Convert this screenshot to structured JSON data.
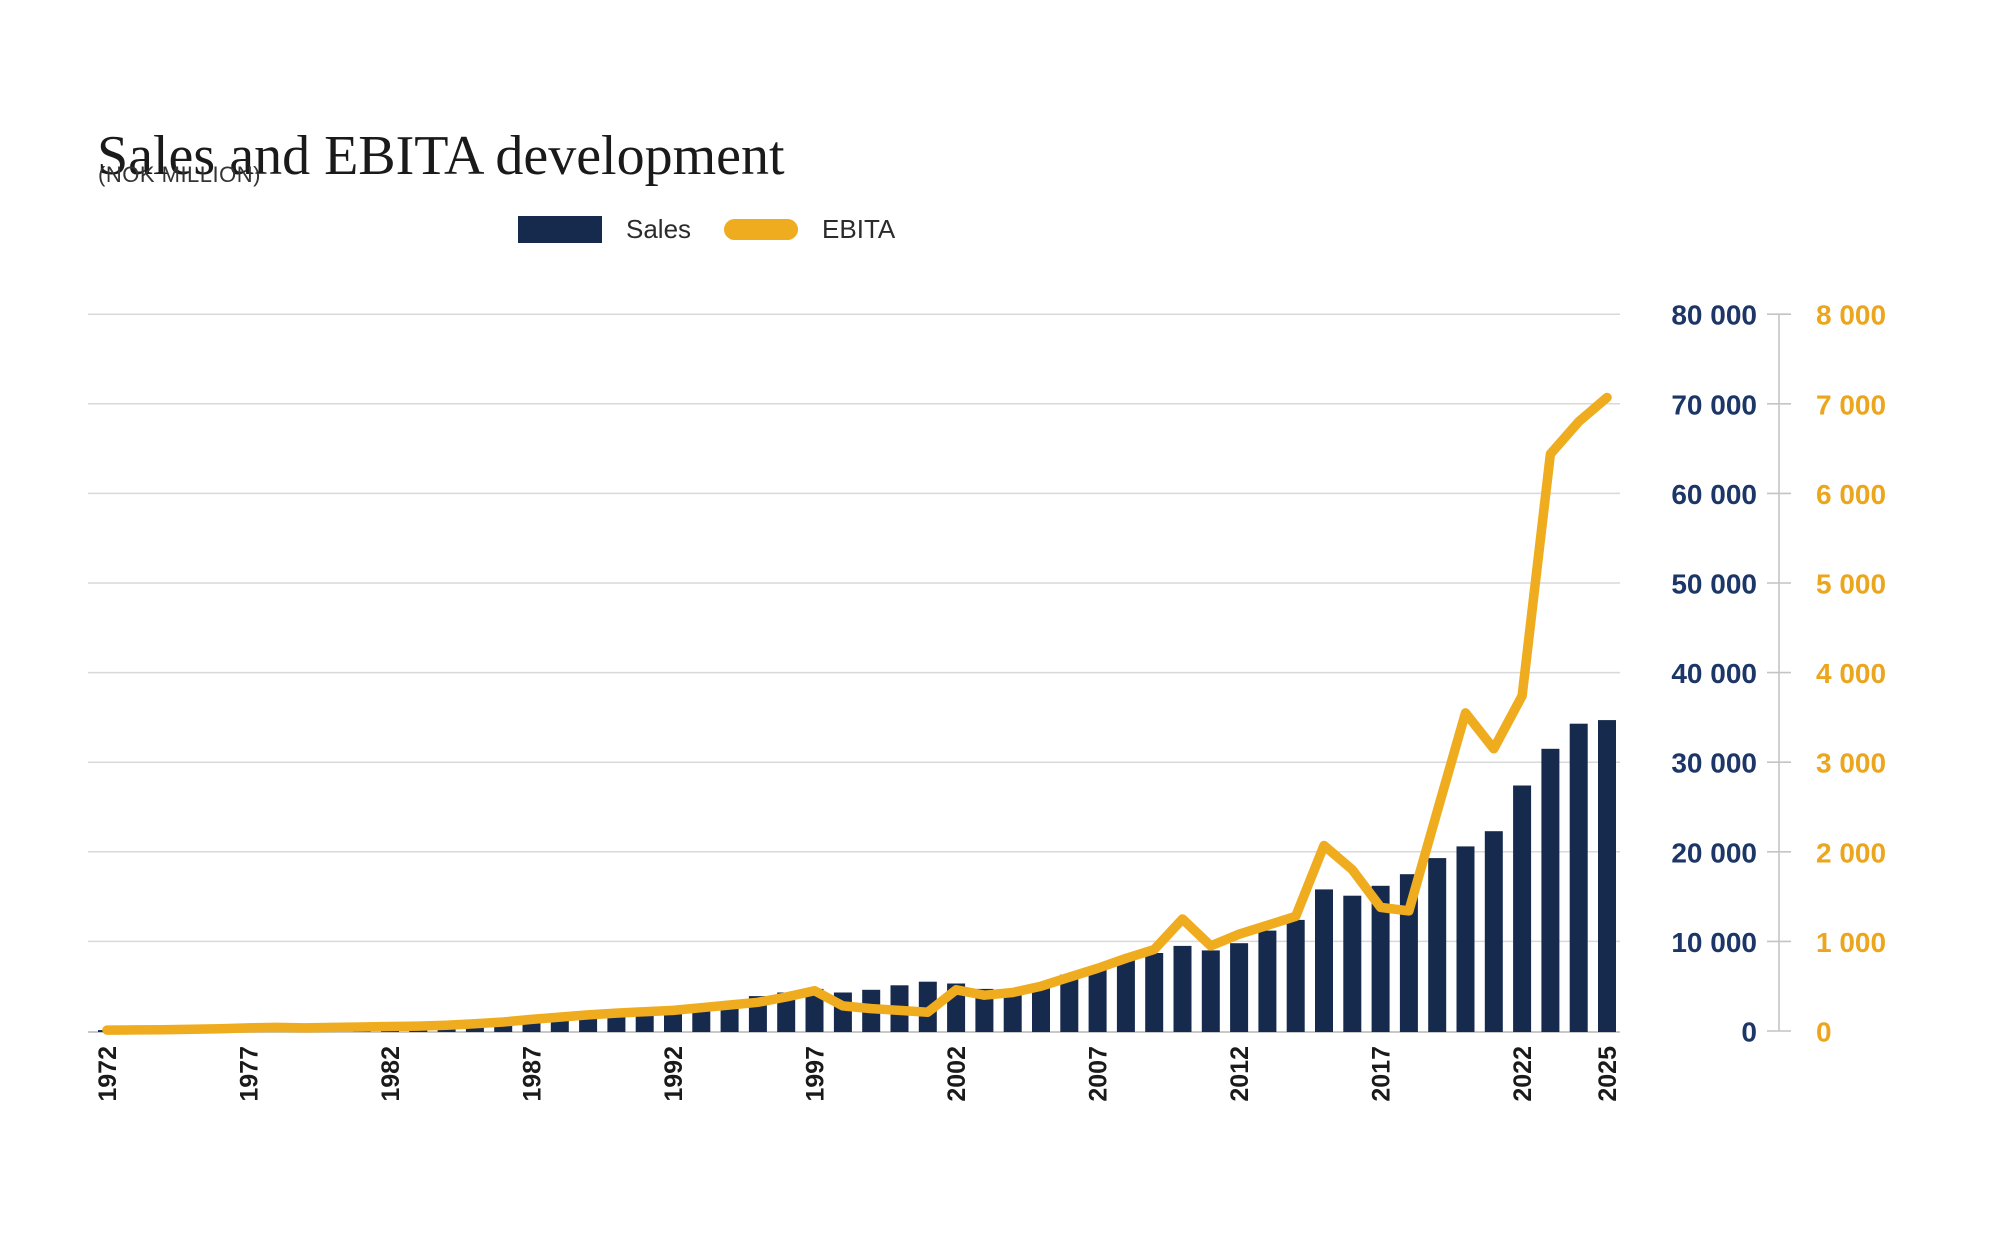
{
  "title": "Sales and EBITA development",
  "subtitle": "(NOK MILLION)",
  "legend": [
    {
      "label": "Sales",
      "swatch": "bar-swatch"
    },
    {
      "label": "EBITA",
      "swatch": "line-swatch"
    }
  ],
  "colors": {
    "bar": "#152A4D",
    "line": "#EFAC1E",
    "left_axis_text": "#1C3667",
    "right_axis_text": "#EBA61E",
    "grid": "#D9D9D9",
    "baseline": "#C9C9C9",
    "axis_line": "#C4C4C4",
    "year_text": "#1A1A1A"
  },
  "chart_data": {
    "type": "bar+line",
    "title": "Sales and EBITA development",
    "subtitle": "(NOK MILLION)",
    "grid": true,
    "legend_position": "top",
    "x": [
      1972,
      1973,
      1974,
      1975,
      1976,
      1977,
      1978,
      1979,
      1980,
      1981,
      1982,
      1983,
      1984,
      1985,
      1986,
      1987,
      1988,
      1989,
      1990,
      1991,
      1992,
      1993,
      1994,
      1995,
      1996,
      1997,
      1998,
      1999,
      2000,
      2001,
      2002,
      2003,
      2004,
      2005,
      2006,
      2007,
      2008,
      2009,
      2010,
      2011,
      2012,
      2013,
      2014,
      2015,
      2016,
      2017,
      2018,
      2019,
      2020,
      2021,
      2022,
      2023,
      2024,
      2025
    ],
    "x_tick_years": [
      1972,
      1977,
      1982,
      1987,
      1992,
      1997,
      2002,
      2007,
      2012,
      2017,
      2022,
      2025
    ],
    "series": [
      {
        "name": "Sales",
        "type": "bar",
        "axis": "left",
        "values": [
          100,
          150,
          200,
          300,
          450,
          600,
          700,
          750,
          800,
          850,
          800,
          850,
          900,
          950,
          1000,
          1200,
          1400,
          1700,
          1900,
          2100,
          2400,
          2800,
          3300,
          3900,
          4300,
          4700,
          4300,
          4600,
          5100,
          5500,
          5300,
          4700,
          4700,
          5300,
          6300,
          7200,
          8000,
          8700,
          9500,
          9000,
          9800,
          11200,
          12400,
          15800,
          15100,
          16200,
          17500,
          19300,
          20600,
          22300,
          27400,
          31500,
          34300,
          34700
        ]
      },
      {
        "name": "EBITA",
        "type": "line",
        "axis": "right",
        "values": [
          10,
          12,
          15,
          20,
          25,
          35,
          40,
          35,
          40,
          45,
          50,
          55,
          65,
          80,
          100,
          130,
          155,
          180,
          200,
          215,
          230,
          260,
          290,
          320,
          380,
          450,
          280,
          250,
          230,
          210,
          460,
          400,
          430,
          500,
          600,
          700,
          810,
          910,
          1250,
          950,
          1080,
          1180,
          1280,
          2070,
          1800,
          1380,
          1340,
          2450,
          3550,
          3150,
          3740,
          6440,
          6800,
          7070
        ]
      }
    ],
    "left_axis": {
      "min": 0,
      "max": 80000,
      "step": 10000,
      "tick_labels": [
        "0",
        "10 000",
        "20 000",
        "30 000",
        "40 000",
        "50 000",
        "60 000",
        "70 000",
        "80 000"
      ]
    },
    "right_axis": {
      "min": 0,
      "max": 8000,
      "step": 1000,
      "tick_labels": [
        "0",
        "1 000",
        "2 000",
        "3 000",
        "4 000",
        "5 000",
        "6 000",
        "7 000",
        "8 000"
      ]
    }
  }
}
